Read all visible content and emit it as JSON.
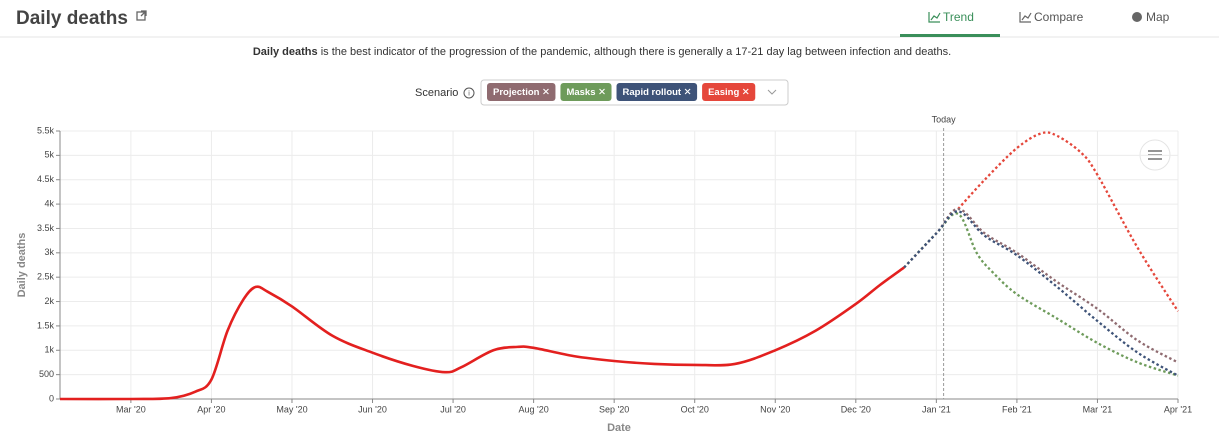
{
  "header": {
    "title": "Daily deaths",
    "tabs": [
      "Trend",
      "Compare",
      "Map"
    ]
  },
  "description": {
    "bold": "Daily deaths",
    "text": " is the best indicator of the progression of the pandemic, although there is generally a 17-21 day lag between infection and deaths."
  },
  "scenario_label": "Scenario",
  "chart_data": {
    "type": "line",
    "x_label": "Date",
    "y_label": "Daily deaths",
    "xlim": [
      2.12,
      16
    ],
    "xticks": [
      {
        "value": 3,
        "label": "Mar '20"
      },
      {
        "value": 4,
        "label": "Apr '20"
      },
      {
        "value": 5,
        "label": "May '20"
      },
      {
        "value": 6,
        "label": "Jun '20"
      },
      {
        "value": 7,
        "label": "Jul '20"
      },
      {
        "value": 8,
        "label": "Aug '20"
      },
      {
        "value": 9,
        "label": "Sep '20"
      },
      {
        "value": 10,
        "label": "Oct '20"
      },
      {
        "value": 11,
        "label": "Nov '20"
      },
      {
        "value": 12,
        "label": "Dec '20"
      },
      {
        "value": 13,
        "label": "Jan '21"
      },
      {
        "value": 14,
        "label": "Feb '21"
      },
      {
        "value": 15,
        "label": "Mar '21"
      },
      {
        "value": 16,
        "label": "Apr '21"
      }
    ],
    "ylim": [
      0,
      5500
    ],
    "yticks": [
      0,
      500,
      {
        "value": 1000,
        "label": "1k"
      },
      {
        "value": 1500,
        "label": "1.5k"
      },
      {
        "value": 2000,
        "label": "2k"
      },
      {
        "value": 2500,
        "label": "2.5k"
      },
      {
        "value": 3000,
        "label": "3k"
      },
      {
        "value": 3500,
        "label": "3.5k"
      },
      {
        "value": 4000,
        "label": "4k"
      },
      {
        "value": 4500,
        "label": "4.5k"
      },
      {
        "value": 5000,
        "label": "5k"
      },
      {
        "value": 5500,
        "label": "5.5k"
      }
    ],
    "grid": true,
    "annotation": {
      "x": 13.09,
      "label": "Today"
    },
    "series": [
      {
        "color": "#e3201f",
        "dashed": false,
        "x": [
          2.12,
          3.0,
          3.5,
          3.8,
          4.0,
          4.2,
          4.4,
          4.55,
          4.7,
          5.0,
          5.5,
          6.0,
          6.5,
          6.9,
          7.1,
          7.5,
          7.8,
          8.0,
          8.5,
          9.0,
          9.5,
          10.0,
          10.5,
          11.0,
          11.5,
          12.0,
          12.3,
          12.6
        ],
        "values": [
          0,
          0,
          20,
          150,
          400,
          1400,
          2050,
          2300,
          2200,
          1900,
          1300,
          950,
          680,
          550,
          650,
          1000,
          1070,
          1050,
          880,
          780,
          720,
          700,
          720,
          1000,
          1400,
          1950,
          2340,
          2700
        ]
      },
      {
        "name": "Projection",
        "color": "#8f6b70",
        "dashed": true,
        "x": [
          12.6,
          13.0,
          13.27,
          13.6,
          14.0,
          14.5,
          15.0,
          15.5,
          16.0
        ],
        "values": [
          2700,
          3400,
          3900,
          3400,
          3000,
          2400,
          1850,
          1200,
          750
        ]
      },
      {
        "name": "Masks",
        "color": "#6e9b5b",
        "dashed": true,
        "x": [
          12.6,
          13.0,
          13.27,
          13.5,
          13.7,
          14.0,
          14.5,
          15.0,
          15.5,
          16.0
        ],
        "values": [
          2700,
          3400,
          3800,
          3000,
          2600,
          2150,
          1650,
          1150,
          750,
          480
        ]
      },
      {
        "name": "Rapid rollout",
        "color": "#3e5378",
        "dashed": true,
        "x": [
          12.6,
          13.0,
          13.27,
          13.6,
          14.0,
          14.5,
          15.0,
          15.5,
          16.0
        ],
        "values": [
          2700,
          3400,
          3850,
          3350,
          2950,
          2300,
          1600,
          950,
          480
        ]
      },
      {
        "name": "Easing",
        "color": "#e5473b",
        "dashed": true,
        "x": [
          13.27,
          13.6,
          14.0,
          14.3,
          14.5,
          14.8,
          15.0,
          15.5,
          16.0
        ],
        "values": [
          3900,
          4500,
          5150,
          5450,
          5400,
          5050,
          4600,
          3100,
          1800
        ]
      }
    ]
  }
}
